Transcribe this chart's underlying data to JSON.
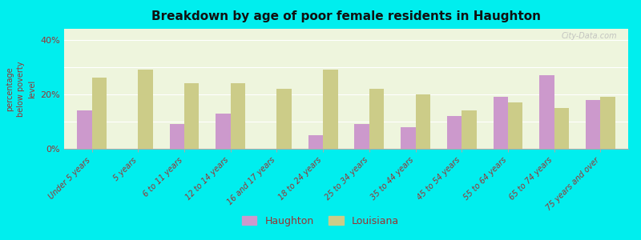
{
  "title": "Breakdown by age of poor female residents in Haughton",
  "ylabel": "percentage\nbelow poverty\nlevel",
  "categories": [
    "Under 5 years",
    "5 years",
    "6 to 11 years",
    "12 to 14 years",
    "16 and 17 years",
    "18 to 24 years",
    "25 to 34 years",
    "35 to 44 years",
    "45 to 54 years",
    "55 to 64 years",
    "65 to 74 years",
    "75 years and over"
  ],
  "haughton": [
    14,
    0,
    9,
    13,
    0,
    5,
    9,
    8,
    12,
    19,
    27,
    18
  ],
  "louisiana": [
    26,
    29,
    24,
    24,
    22,
    29,
    22,
    20,
    14,
    17,
    15,
    19
  ],
  "haughton_color": "#cc99cc",
  "louisiana_color": "#cccc88",
  "background_color": "#eef5dd",
  "outer_background": "#00eeee",
  "title_color": "#111111",
  "axis_label_color": "#993333",
  "tick_label_color": "#993333",
  "ylim": [
    0,
    44
  ],
  "yticks": [
    0,
    10,
    20,
    30,
    40
  ],
  "ytick_labels": [
    "0%",
    "",
    "20%",
    "",
    "40%"
  ],
  "watermark": "City-Data.com",
  "legend_labels": [
    "Haughton",
    "Louisiana"
  ]
}
